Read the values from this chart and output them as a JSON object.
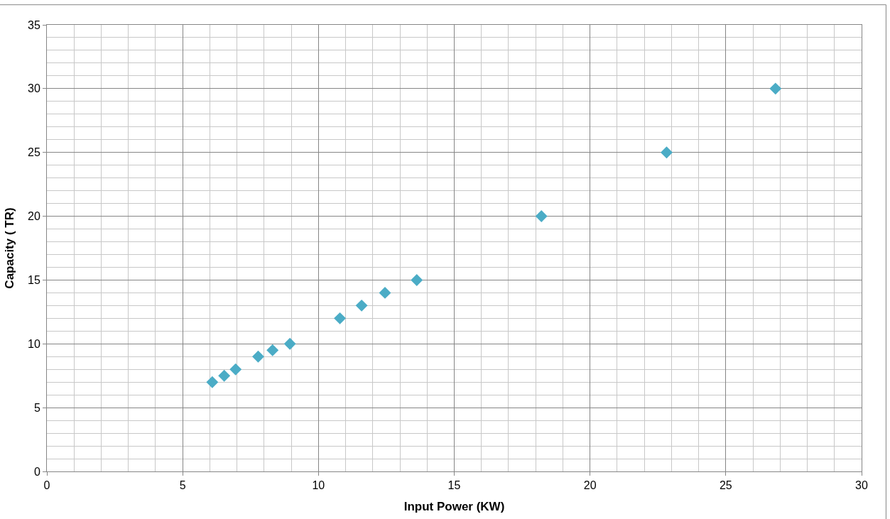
{
  "chart_data": {
    "type": "scatter",
    "xlabel": "Input Power (KW)",
    "ylabel": "Capacity ( TR)",
    "x": [
      6.09,
      6.53,
      6.95,
      7.78,
      8.31,
      8.95,
      10.79,
      11.59,
      12.45,
      13.62,
      18.21,
      22.82,
      26.83
    ],
    "series": [
      {
        "color": "#4bacc6",
        "values": [
          7,
          7.5,
          8,
          9,
          9.5,
          10,
          12,
          13,
          14,
          15,
          20,
          25,
          30
        ]
      }
    ],
    "xlim": [
      0,
      30
    ],
    "xticks": [
      0,
      5,
      10,
      15,
      20,
      25,
      30
    ],
    "ylim": [
      0,
      35
    ],
    "yticks": [
      0,
      5,
      10,
      15,
      20,
      25,
      30,
      35
    ],
    "grid": true,
    "marker": "diamond"
  }
}
